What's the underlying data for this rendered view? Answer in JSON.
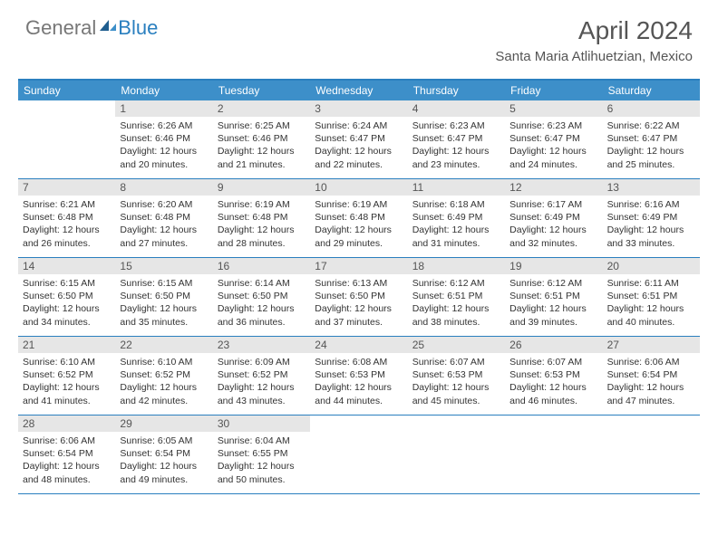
{
  "brand": {
    "part1": "General",
    "part2": "Blue"
  },
  "title": "April 2024",
  "location": "Santa Maria Atlihuetzian, Mexico",
  "colors": {
    "header_bg": "#3d8fc9",
    "border": "#2a7fbf",
    "daynum_bg": "#e6e6e6",
    "text": "#333333",
    "title_text": "#555555"
  },
  "day_names": [
    "Sunday",
    "Monday",
    "Tuesday",
    "Wednesday",
    "Thursday",
    "Friday",
    "Saturday"
  ],
  "weeks": [
    [
      null,
      {
        "n": "1",
        "sr": "6:26 AM",
        "ss": "6:46 PM",
        "dl": "12 hours and 20 minutes."
      },
      {
        "n": "2",
        "sr": "6:25 AM",
        "ss": "6:46 PM",
        "dl": "12 hours and 21 minutes."
      },
      {
        "n": "3",
        "sr": "6:24 AM",
        "ss": "6:47 PM",
        "dl": "12 hours and 22 minutes."
      },
      {
        "n": "4",
        "sr": "6:23 AM",
        "ss": "6:47 PM",
        "dl": "12 hours and 23 minutes."
      },
      {
        "n": "5",
        "sr": "6:23 AM",
        "ss": "6:47 PM",
        "dl": "12 hours and 24 minutes."
      },
      {
        "n": "6",
        "sr": "6:22 AM",
        "ss": "6:47 PM",
        "dl": "12 hours and 25 minutes."
      }
    ],
    [
      {
        "n": "7",
        "sr": "6:21 AM",
        "ss": "6:48 PM",
        "dl": "12 hours and 26 minutes."
      },
      {
        "n": "8",
        "sr": "6:20 AM",
        "ss": "6:48 PM",
        "dl": "12 hours and 27 minutes."
      },
      {
        "n": "9",
        "sr": "6:19 AM",
        "ss": "6:48 PM",
        "dl": "12 hours and 28 minutes."
      },
      {
        "n": "10",
        "sr": "6:19 AM",
        "ss": "6:48 PM",
        "dl": "12 hours and 29 minutes."
      },
      {
        "n": "11",
        "sr": "6:18 AM",
        "ss": "6:49 PM",
        "dl": "12 hours and 31 minutes."
      },
      {
        "n": "12",
        "sr": "6:17 AM",
        "ss": "6:49 PM",
        "dl": "12 hours and 32 minutes."
      },
      {
        "n": "13",
        "sr": "6:16 AM",
        "ss": "6:49 PM",
        "dl": "12 hours and 33 minutes."
      }
    ],
    [
      {
        "n": "14",
        "sr": "6:15 AM",
        "ss": "6:50 PM",
        "dl": "12 hours and 34 minutes."
      },
      {
        "n": "15",
        "sr": "6:15 AM",
        "ss": "6:50 PM",
        "dl": "12 hours and 35 minutes."
      },
      {
        "n": "16",
        "sr": "6:14 AM",
        "ss": "6:50 PM",
        "dl": "12 hours and 36 minutes."
      },
      {
        "n": "17",
        "sr": "6:13 AM",
        "ss": "6:50 PM",
        "dl": "12 hours and 37 minutes."
      },
      {
        "n": "18",
        "sr": "6:12 AM",
        "ss": "6:51 PM",
        "dl": "12 hours and 38 minutes."
      },
      {
        "n": "19",
        "sr": "6:12 AM",
        "ss": "6:51 PM",
        "dl": "12 hours and 39 minutes."
      },
      {
        "n": "20",
        "sr": "6:11 AM",
        "ss": "6:51 PM",
        "dl": "12 hours and 40 minutes."
      }
    ],
    [
      {
        "n": "21",
        "sr": "6:10 AM",
        "ss": "6:52 PM",
        "dl": "12 hours and 41 minutes."
      },
      {
        "n": "22",
        "sr": "6:10 AM",
        "ss": "6:52 PM",
        "dl": "12 hours and 42 minutes."
      },
      {
        "n": "23",
        "sr": "6:09 AM",
        "ss": "6:52 PM",
        "dl": "12 hours and 43 minutes."
      },
      {
        "n": "24",
        "sr": "6:08 AM",
        "ss": "6:53 PM",
        "dl": "12 hours and 44 minutes."
      },
      {
        "n": "25",
        "sr": "6:07 AM",
        "ss": "6:53 PM",
        "dl": "12 hours and 45 minutes."
      },
      {
        "n": "26",
        "sr": "6:07 AM",
        "ss": "6:53 PM",
        "dl": "12 hours and 46 minutes."
      },
      {
        "n": "27",
        "sr": "6:06 AM",
        "ss": "6:54 PM",
        "dl": "12 hours and 47 minutes."
      }
    ],
    [
      {
        "n": "28",
        "sr": "6:06 AM",
        "ss": "6:54 PM",
        "dl": "12 hours and 48 minutes."
      },
      {
        "n": "29",
        "sr": "6:05 AM",
        "ss": "6:54 PM",
        "dl": "12 hours and 49 minutes."
      },
      {
        "n": "30",
        "sr": "6:04 AM",
        "ss": "6:55 PM",
        "dl": "12 hours and 50 minutes."
      },
      null,
      null,
      null,
      null
    ]
  ],
  "labels": {
    "sunrise": "Sunrise:",
    "sunset": "Sunset:",
    "daylight": "Daylight:"
  }
}
